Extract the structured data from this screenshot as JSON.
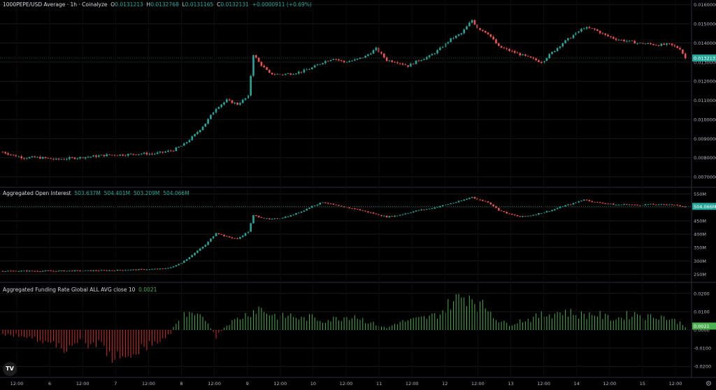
{
  "header": {
    "symbol": "1000PEPE/USD Average · 1h · Coinalyze",
    "o_label": "O",
    "o": "0.0131213",
    "h_label": "H",
    "h": "0.0132768",
    "l_label": "L",
    "l": "0.0131165",
    "c_label": "C",
    "c": "0.0132131",
    "change": "+0.0000911 (+0.69%)"
  },
  "oi_header": {
    "title": "Aggregated Open Interest",
    "values": [
      "503.637M",
      "504.401M",
      "503.209M",
      "504.066M"
    ]
  },
  "fr_header": {
    "title": "Aggregated Funding Rate Global ALL AVG close 10",
    "value": "0.0021"
  },
  "colors": {
    "up": "#26a69a",
    "down": "#ef5350",
    "fr_up": "#4caf50",
    "fr_down": "#d32f2f",
    "bg": "#000000",
    "grid": "#1a1a1a"
  },
  "logo_icon": "tradingview-logo-icon",
  "settings_icon": "gear-icon",
  "chart_data": [
    {
      "type": "candlestick",
      "series": [
        {
          "name": "1000PEPE/USD Average"
        }
      ],
      "x_ticks": [
        "12:00",
        "6",
        "12:00",
        "7",
        "12:00",
        "8",
        "12:00",
        "9",
        "12:00",
        "10",
        "12:00",
        "11",
        "12:00",
        "12",
        "12:00",
        "13",
        "12:00",
        "14",
        "12:00",
        "15",
        "12:00"
      ],
      "y_ticks": [
        "0.0160000",
        "0.0150000",
        "0.0140000",
        "0.0130000",
        "0.0120000",
        "0.0110000",
        "0.0100000",
        "0.0090000",
        "0.0080000",
        "0.0070000"
      ],
      "ylim": [
        0.0066,
        0.0161
      ],
      "last_price_label": "0.0132131",
      "last_price": 0.0132131,
      "close_path": [
        [
          0,
          0.0083
        ],
        [
          4,
          0.00812
        ],
        [
          8,
          0.008
        ],
        [
          12,
          0.00802
        ],
        [
          16,
          0.00798
        ],
        [
          20,
          0.0079
        ],
        [
          24,
          0.00796
        ],
        [
          28,
          0.008
        ],
        [
          32,
          0.00805
        ],
        [
          36,
          0.0081
        ],
        [
          40,
          0.00815
        ],
        [
          44,
          0.00815
        ],
        [
          48,
          0.00818
        ],
        [
          52,
          0.00822
        ],
        [
          56,
          0.0082
        ],
        [
          60,
          0.00828
        ],
        [
          64,
          0.0084
        ],
        [
          68,
          0.0087
        ],
        [
          72,
          0.0092
        ],
        [
          76,
          0.0098
        ],
        [
          80,
          0.0106
        ],
        [
          84,
          0.011
        ],
        [
          88,
          0.0108
        ],
        [
          92,
          0.0112
        ],
        [
          94,
          0.0134
        ],
        [
          96,
          0.013
        ],
        [
          100,
          0.0124
        ],
        [
          104,
          0.01235
        ],
        [
          108,
          0.0124
        ],
        [
          112,
          0.0125
        ],
        [
          116,
          0.0127
        ],
        [
          120,
          0.013
        ],
        [
          124,
          0.0132
        ],
        [
          128,
          0.013
        ],
        [
          132,
          0.0131
        ],
        [
          136,
          0.0133
        ],
        [
          140,
          0.0137
        ],
        [
          144,
          0.0131
        ],
        [
          148,
          0.013
        ],
        [
          152,
          0.0128
        ],
        [
          156,
          0.0131
        ],
        [
          160,
          0.0133
        ],
        [
          164,
          0.0137
        ],
        [
          168,
          0.0142
        ],
        [
          172,
          0.0145
        ],
        [
          176,
          0.0152
        ],
        [
          178,
          0.0148
        ],
        [
          182,
          0.0145
        ],
        [
          186,
          0.0138
        ],
        [
          190,
          0.0136
        ],
        [
          194,
          0.0134
        ],
        [
          198,
          0.0132
        ],
        [
          202,
          0.013
        ],
        [
          206,
          0.0135
        ],
        [
          210,
          0.014
        ],
        [
          214,
          0.0144
        ],
        [
          218,
          0.0148
        ],
        [
          222,
          0.0147
        ],
        [
          226,
          0.0144
        ],
        [
          230,
          0.0142
        ],
        [
          234,
          0.0141
        ],
        [
          238,
          0.014
        ],
        [
          242,
          0.01395
        ],
        [
          246,
          0.0139
        ],
        [
          250,
          0.01392
        ],
        [
          254,
          0.0137
        ],
        [
          256,
          0.01321
        ]
      ]
    },
    {
      "type": "candlestick",
      "series": [
        {
          "name": "Aggregated Open Interest"
        }
      ],
      "y_ticks": [
        "550M",
        "500M",
        "450M",
        "400M",
        "350M",
        "300M",
        "250M"
      ],
      "ylim": [
        230,
        565
      ],
      "last_label": "504.066M",
      "last_value": 504.066,
      "close_path": [
        [
          0,
          262
        ],
        [
          20,
          262
        ],
        [
          40,
          264
        ],
        [
          60,
          270
        ],
        [
          64,
          278
        ],
        [
          68,
          300
        ],
        [
          72,
          330
        ],
        [
          76,
          360
        ],
        [
          80,
          405
        ],
        [
          84,
          390
        ],
        [
          88,
          382
        ],
        [
          92,
          410
        ],
        [
          94,
          470
        ],
        [
          96,
          465
        ],
        [
          100,
          455
        ],
        [
          104,
          460
        ],
        [
          108,
          470
        ],
        [
          112,
          485
        ],
        [
          116,
          505
        ],
        [
          120,
          520
        ],
        [
          124,
          510
        ],
        [
          128,
          500
        ],
        [
          132,
          495
        ],
        [
          136,
          485
        ],
        [
          140,
          475
        ],
        [
          144,
          465
        ],
        [
          148,
          470
        ],
        [
          152,
          480
        ],
        [
          156,
          490
        ],
        [
          160,
          495
        ],
        [
          164,
          505
        ],
        [
          168,
          515
        ],
        [
          172,
          525
        ],
        [
          176,
          540
        ],
        [
          178,
          530
        ],
        [
          182,
          520
        ],
        [
          186,
          490
        ],
        [
          190,
          475
        ],
        [
          194,
          465
        ],
        [
          198,
          470
        ],
        [
          202,
          480
        ],
        [
          206,
          490
        ],
        [
          210,
          505
        ],
        [
          214,
          515
        ],
        [
          218,
          530
        ],
        [
          222,
          520
        ],
        [
          226,
          515
        ],
        [
          230,
          510
        ],
        [
          234,
          512
        ],
        [
          238,
          508
        ],
        [
          242,
          512
        ],
        [
          246,
          510
        ],
        [
          250,
          512
        ],
        [
          254,
          505
        ],
        [
          256,
          504
        ]
      ]
    },
    {
      "type": "bar",
      "series": [
        {
          "name": "Aggregated Funding Rate Global ALL AVG close 10"
        }
      ],
      "y_ticks": [
        "0.0200",
        "0.0100",
        "0.0000",
        "-0.0100",
        "-0.0200"
      ],
      "ylim": [
        -0.0245,
        0.0245
      ],
      "last_label": "0.0021",
      "last_value": 0.0021,
      "value_path": [
        [
          0,
          -0.0025
        ],
        [
          10,
          -0.0035
        ],
        [
          18,
          -0.008
        ],
        [
          24,
          -0.01
        ],
        [
          28,
          -0.006
        ],
        [
          32,
          -0.009
        ],
        [
          36,
          -0.007
        ],
        [
          40,
          -0.014
        ],
        [
          44,
          -0.016
        ],
        [
          46,
          -0.02
        ],
        [
          48,
          -0.013
        ],
        [
          52,
          -0.01
        ],
        [
          56,
          -0.008
        ],
        [
          60,
          -0.005
        ],
        [
          63,
          -0.002
        ],
        [
          64,
          0.002
        ],
        [
          68,
          0.008
        ],
        [
          72,
          0.0075
        ],
        [
          76,
          0.006
        ],
        [
          80,
          -0.004
        ],
        [
          84,
          0.003
        ],
        [
          88,
          0.006
        ],
        [
          92,
          0.009
        ],
        [
          96,
          0.012
        ],
        [
          100,
          0.009
        ],
        [
          104,
          0.007
        ],
        [
          108,
          0.008
        ],
        [
          112,
          0.006
        ],
        [
          116,
          0.007
        ],
        [
          120,
          0.005
        ],
        [
          124,
          0.006
        ],
        [
          128,
          0.007
        ],
        [
          132,
          0.008
        ],
        [
          136,
          0.005
        ],
        [
          140,
          0.003
        ],
        [
          144,
          0.001
        ],
        [
          148,
          0.004
        ],
        [
          152,
          0.005
        ],
        [
          156,
          0.006
        ],
        [
          160,
          0.007
        ],
        [
          164,
          0.009
        ],
        [
          168,
          0.015
        ],
        [
          172,
          0.018
        ],
        [
          176,
          0.019
        ],
        [
          178,
          0.014
        ],
        [
          182,
          0.012
        ],
        [
          186,
          0.005
        ],
        [
          190,
          0.003
        ],
        [
          194,
          0.005
        ],
        [
          198,
          0.006
        ],
        [
          202,
          0.008
        ],
        [
          206,
          0.009
        ],
        [
          210,
          0.01
        ],
        [
          214,
          0.009
        ],
        [
          218,
          0.008
        ],
        [
          222,
          0.009
        ],
        [
          226,
          0.007
        ],
        [
          230,
          0.006
        ],
        [
          234,
          0.008
        ],
        [
          238,
          0.009
        ],
        [
          242,
          0.007
        ],
        [
          246,
          0.008
        ],
        [
          250,
          0.006
        ],
        [
          254,
          0.004
        ],
        [
          256,
          0.0021
        ]
      ]
    }
  ]
}
